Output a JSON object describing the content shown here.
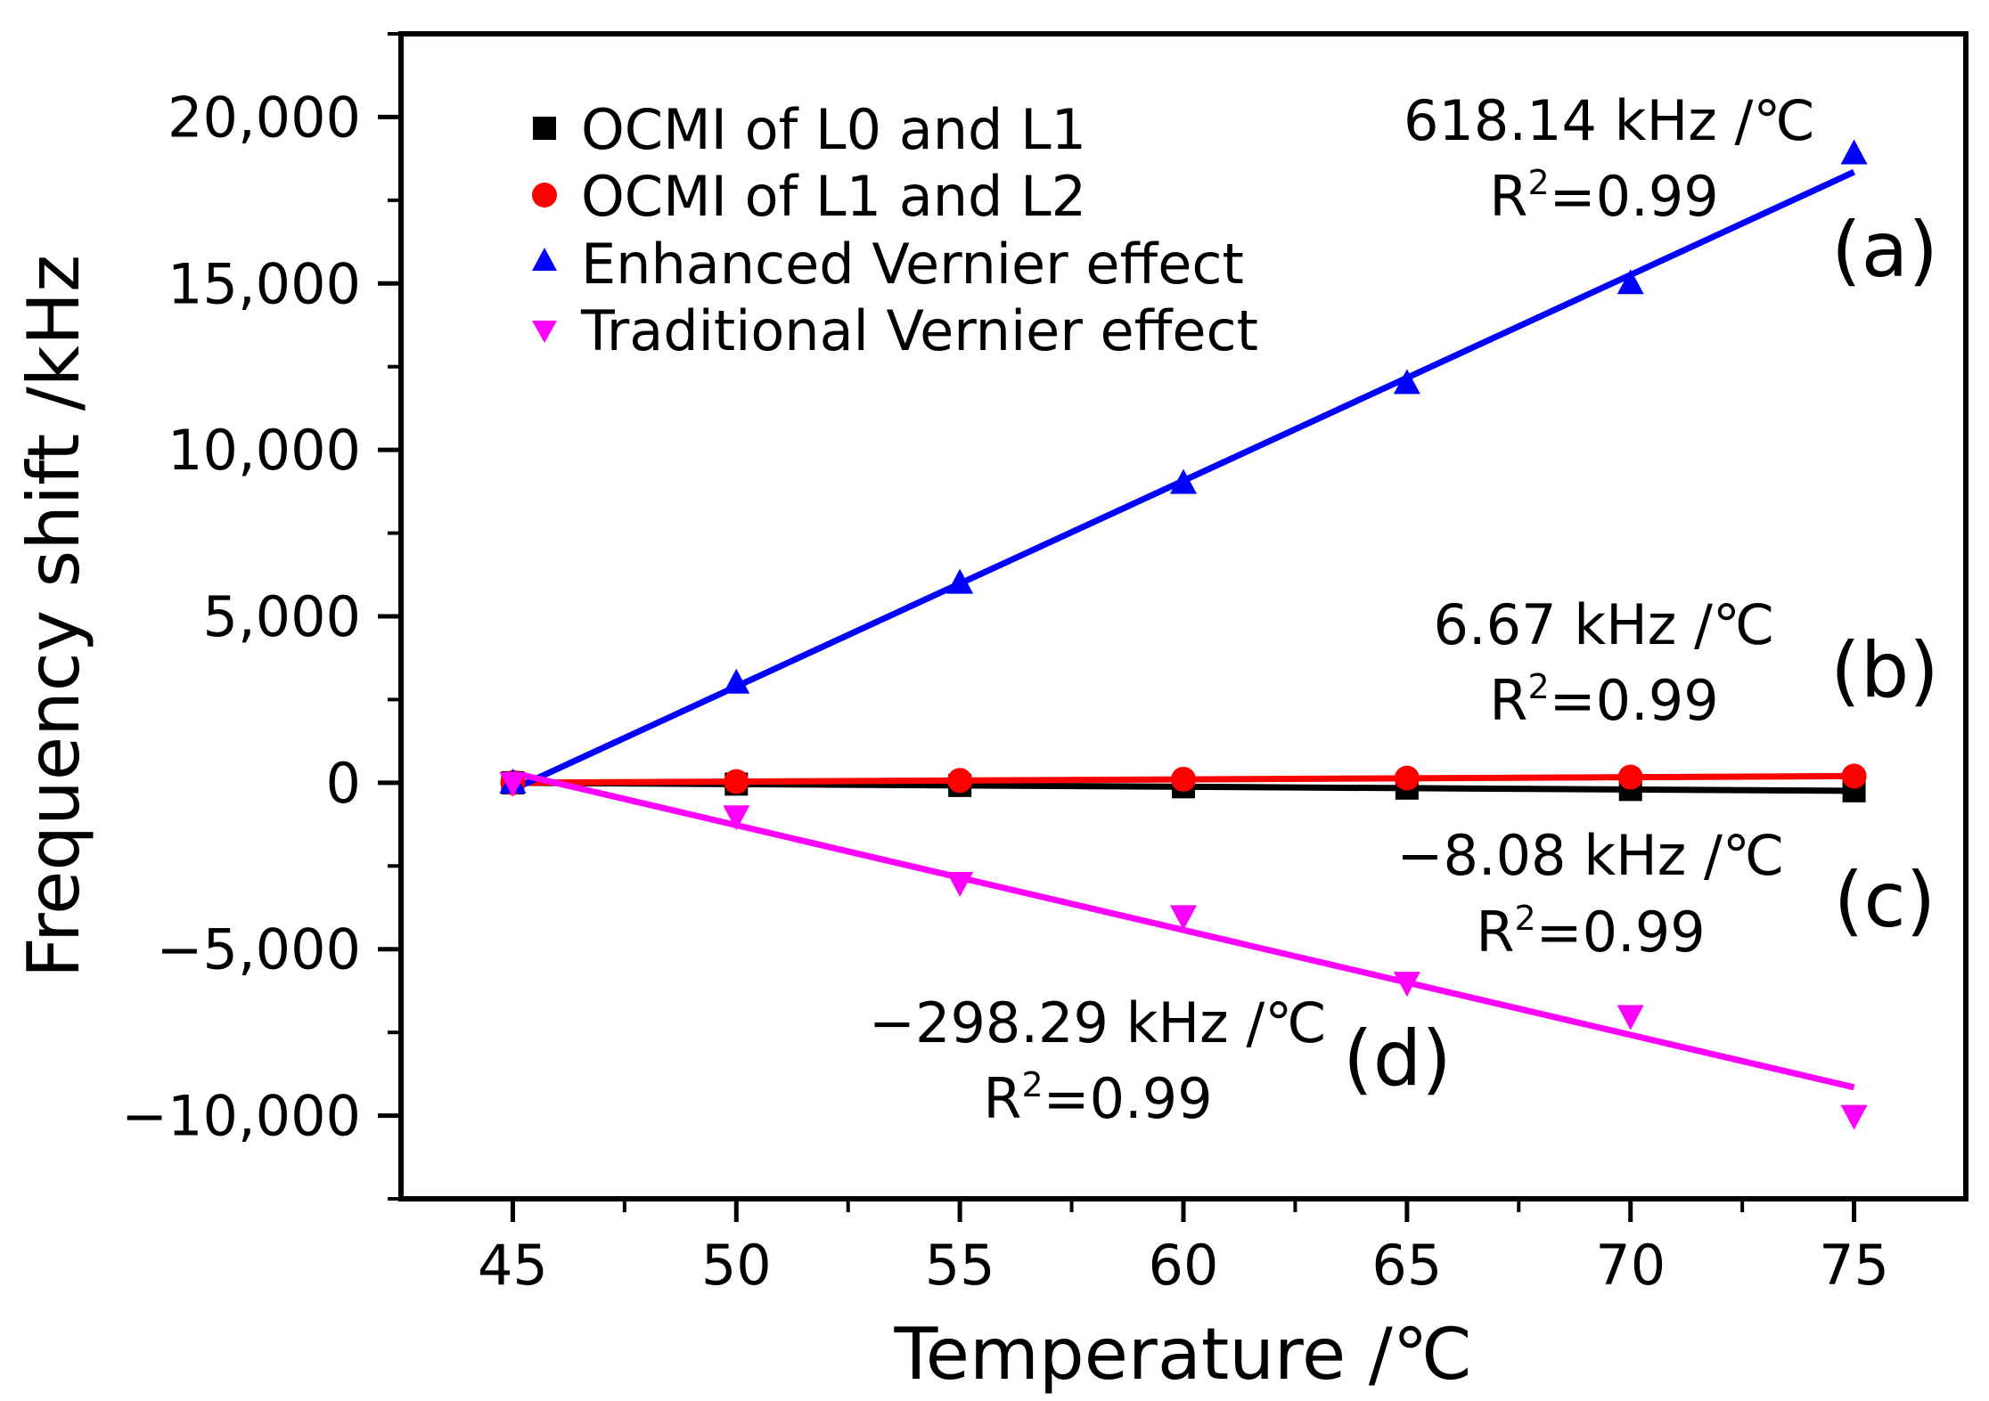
{
  "chart_data": {
    "type": "scatter",
    "xlabel": "Temperature /℃",
    "ylabel": "Frequency shift /kHz",
    "xlim": [
      42.5,
      77.5
    ],
    "ylim": [
      -12500,
      22500
    ],
    "x": [
      45,
      50,
      55,
      60,
      65,
      70,
      75
    ],
    "x_ticks": [
      45,
      50,
      55,
      60,
      65,
      70,
      75
    ],
    "x_tick_labels": [
      "45",
      "50",
      "55",
      "60",
      "65",
      "70",
      "75"
    ],
    "y_ticks": [
      -10000,
      -5000,
      0,
      5000,
      10000,
      15000,
      20000
    ],
    "y_tick_labels": [
      "−10,000",
      "−5,000",
      "0",
      "5,000",
      "10,000",
      "15,000",
      "20,000"
    ],
    "series": [
      {
        "name": "OCMI of L0 and L1",
        "marker": "square",
        "color": "#000000",
        "values": [
          0,
          -40,
          -80,
          -120,
          -160,
          -200,
          -240
        ],
        "fit": {
          "x": [
            45,
            75
          ],
          "y": [
            0,
            -242
          ]
        }
      },
      {
        "name": "OCMI of L1 and L2",
        "marker": "circle",
        "color": "#ff0000",
        "values": [
          0,
          35,
          70,
          105,
          140,
          170,
          200
        ],
        "fit": {
          "x": [
            45,
            75
          ],
          "y": [
            0,
            200
          ]
        }
      },
      {
        "name": "Enhanced Vernier effect",
        "marker": "triangle-up",
        "color": "#0000ff",
        "values": [
          0,
          3000,
          6000,
          9000,
          12000,
          15000,
          18900
        ],
        "fit": {
          "x": [
            45,
            75
          ],
          "y": [
            -200,
            18350
          ]
        }
      },
      {
        "name": "Traditional Vernier effect",
        "marker": "triangle-down",
        "color": "#ff00ff",
        "values": [
          0,
          -1000,
          -3000,
          -4000,
          -6000,
          -7000,
          -10000
        ],
        "fit": {
          "x": [
            45,
            75
          ],
          "y": [
            300,
            -9150
          ]
        }
      }
    ],
    "annotations": [
      {
        "id": "a",
        "slope": "618.14 kHz /℃",
        "r2_label": "R",
        "r2_value": "=0.99",
        "panel": "(a)"
      },
      {
        "id": "b",
        "slope": "6.67 kHz /℃",
        "r2_label": "R",
        "r2_value": "=0.99",
        "panel": "(b)"
      },
      {
        "id": "c",
        "slope": "−8.08 kHz /℃",
        "r2_label": "R",
        "r2_value": "=0.99",
        "panel": "(c)"
      },
      {
        "id": "d",
        "slope": "−298.29 kHz /℃",
        "r2_label": "R",
        "r2_value": "=0.99",
        "panel": "(d)"
      }
    ],
    "superscript": "2",
    "legend_position": "top-left"
  }
}
